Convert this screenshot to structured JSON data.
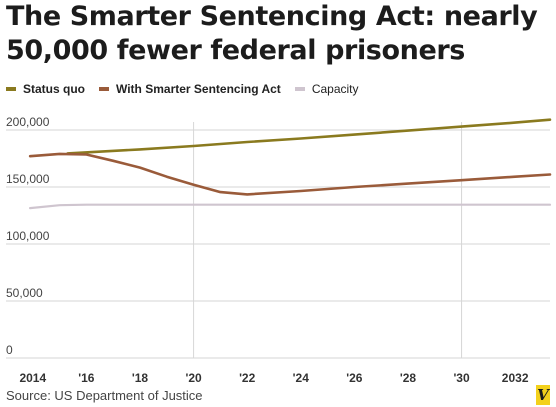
{
  "chart_data": {
    "type": "line",
    "title": "The Smarter Sentencing Act: nearly 50,000 fewer federal prisoners",
    "source": "Source: US Department of Justice",
    "brand": "V",
    "xlabel": "",
    "ylabel": "",
    "x_tick_labels": [
      "2014",
      "'16",
      "'18",
      "'20",
      "'22",
      "'24",
      "'26",
      "'28",
      "'30",
      "2032"
    ],
    "x_tick_values": [
      2014,
      2016,
      2018,
      2020,
      2022,
      2024,
      2026,
      2028,
      2030,
      2032
    ],
    "y_tick_labels": [
      "0",
      "50,000",
      "100,000",
      "150,000",
      "200,000"
    ],
    "y_tick_values": [
      0,
      50000,
      100000,
      150000,
      200000
    ],
    "xlim": [
      2013,
      2033.3
    ],
    "ylim": [
      0,
      200000
    ],
    "grid": "horizontal lines plus vertical lines at 2020 and 2030",
    "legend_position": "top-left",
    "series": [
      {
        "name": "Status quo",
        "color": "#8a7a1f",
        "bold_label": true,
        "x": [
          2015.3,
          2018,
          2020,
          2022,
          2024,
          2026,
          2028,
          2030,
          2032,
          2033.3
        ],
        "y": [
          179500,
          183000,
          186000,
          189500,
          192500,
          196000,
          199500,
          203000,
          206500,
          209000
        ]
      },
      {
        "name": "With Smarter Sentencing Act",
        "color": "#9a5b3a",
        "bold_label": true,
        "x": [
          2013.9,
          2015,
          2016,
          2017,
          2018,
          2019,
          2020,
          2021,
          2022,
          2024,
          2026,
          2028,
          2030,
          2032,
          2033.3
        ],
        "y": [
          177000,
          179000,
          178500,
          173000,
          167000,
          159000,
          152000,
          145500,
          143500,
          146500,
          150000,
          153000,
          156000,
          159000,
          161000
        ]
      },
      {
        "name": "Capacity",
        "color": "#cfc5cf",
        "bold_label": false,
        "x": [
          2013.9,
          2015,
          2016,
          2020,
          2024,
          2028,
          2032,
          2033.3
        ],
        "y": [
          131500,
          134000,
          134500,
          134500,
          134500,
          134500,
          134500,
          134500
        ]
      }
    ]
  }
}
